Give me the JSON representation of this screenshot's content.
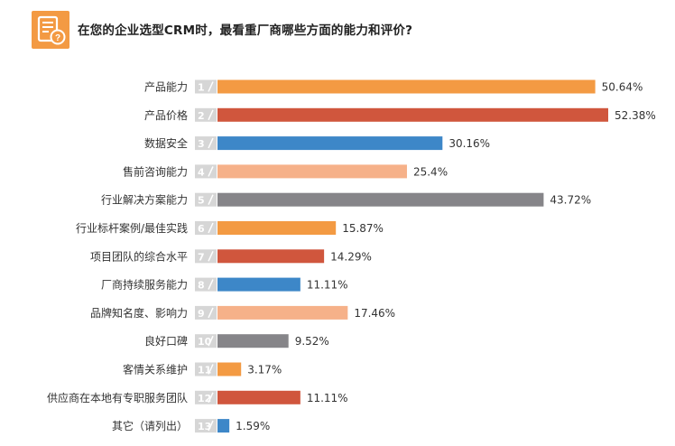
{
  "header": {
    "title": "在您的企业选型CRM时，最看重厂商哪些方面的能力和评价?",
    "icon": "survey-question-icon",
    "icon_color": "#f39a43"
  },
  "colors": {
    "orange": "#f39a43",
    "red": "#d0563d",
    "blue": "#3d87c8",
    "peach": "#f6b189",
    "gray": "#868589",
    "rank_tab": "#d6d6d6"
  },
  "chart_data": {
    "type": "bar",
    "orientation": "horizontal",
    "categories": [
      "产品能力",
      "产品价格",
      "数据安全",
      "售前咨询能力",
      "行业解决方案能力",
      "行业标杆案例/最佳实践",
      "项目团队的综合水平",
      "厂商持续服务能力",
      "品牌知名度、影响力",
      "良好口碑",
      "客情关系维护",
      "供应商在本地有专职服务团队",
      "其它（请列出）"
    ],
    "ranks": [
      "1",
      "2",
      "3",
      "4",
      "5",
      "6",
      "7",
      "8",
      "9",
      "10",
      "11",
      "12",
      "13"
    ],
    "values": [
      50.64,
      52.38,
      30.16,
      25.4,
      43.72,
      15.87,
      14.29,
      11.11,
      17.46,
      9.52,
      3.17,
      11.11,
      1.59
    ],
    "value_labels": [
      "50.64%",
      "52.38%",
      "30.16%",
      "25.4%",
      "43.72%",
      "15.87%",
      "14.29%",
      "11.11%",
      "17.46%",
      "9.52%",
      "3.17%",
      "11.11%",
      "1.59%"
    ],
    "bar_colors": [
      "#f39a43",
      "#d0563d",
      "#3d87c8",
      "#f6b189",
      "#868589",
      "#f39a43",
      "#d0563d",
      "#3d87c8",
      "#f6b189",
      "#868589",
      "#f39a43",
      "#d0563d",
      "#3d87c8"
    ],
    "xlim": [
      0,
      52.38
    ],
    "grid": false,
    "legend": "none"
  }
}
